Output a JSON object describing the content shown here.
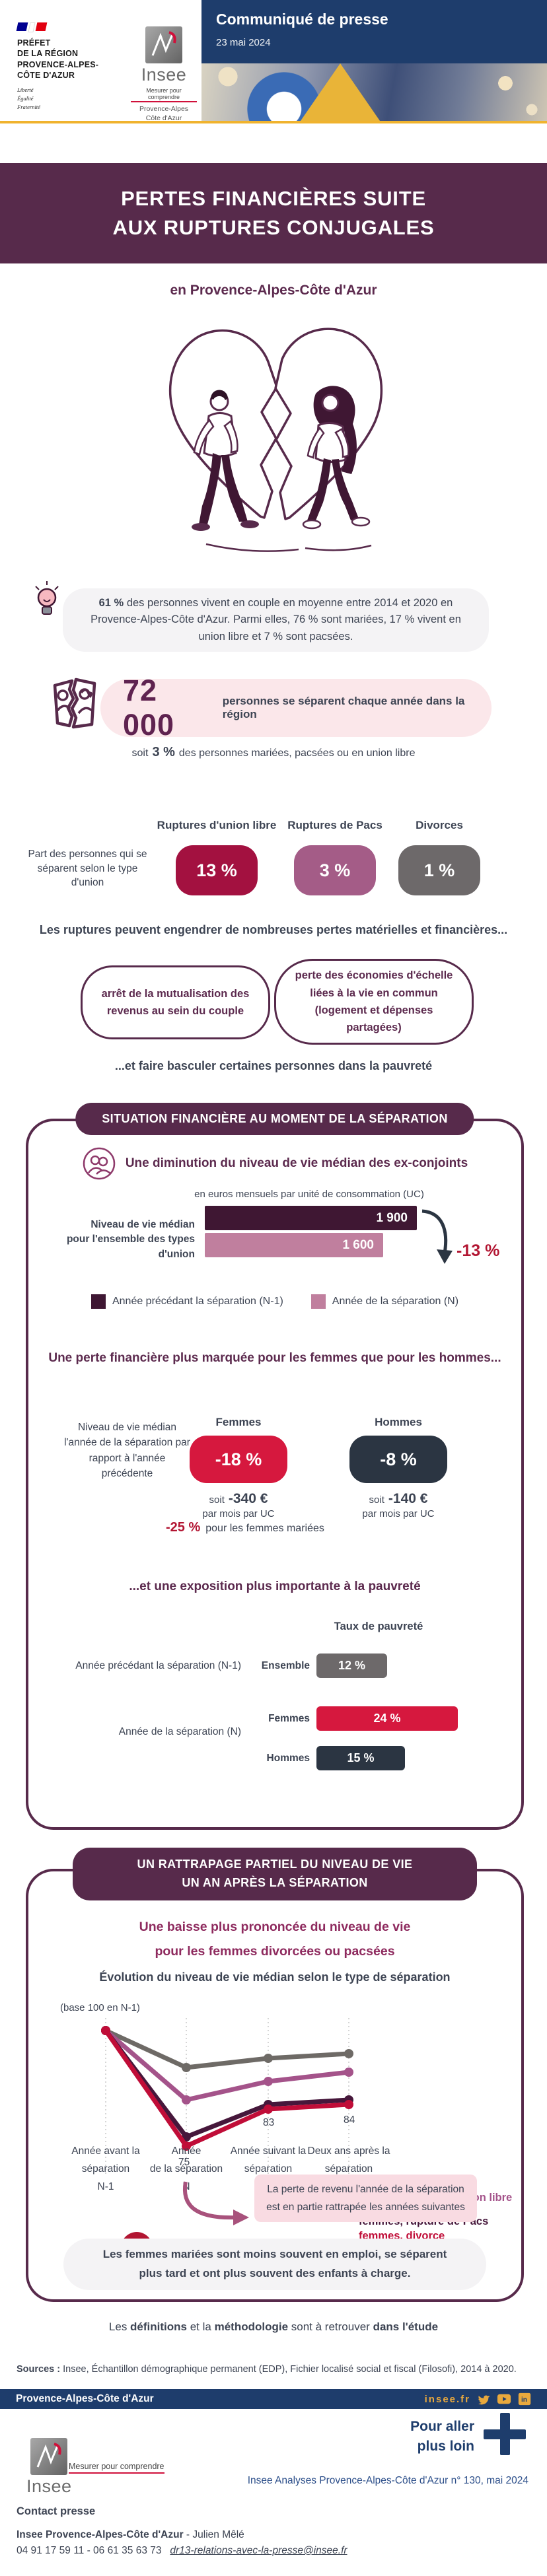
{
  "theme": {
    "purple_dark": "#572a4b",
    "purple_text": "#5c2a4e",
    "heading_magenta": "#8e2a5e",
    "crimson": "#a31140",
    "red_bright": "#d6183e",
    "red_text": "#b21532",
    "mauve": "#a45c87",
    "mauve_line": "#a4538a",
    "pacs_dark": "#46173b",
    "gray_badge": "#6d696a",
    "gray_line": "#6e6a66",
    "navy_badge": "#2b3542",
    "body_text": "#3d4453",
    "blue_band": "#1e3d6c",
    "blue_link": "#2d4f8a",
    "gold": "#e9a93d",
    "yellow_line": "#f0b32e",
    "pink_bg": "#fbe7ea",
    "pink_note": "#f9dbe2",
    "gray_bg": "#f4f3f5",
    "bar_dark": "#3f1733",
    "bar_pink": "#c07f9e"
  },
  "header": {
    "prefet": {
      "line1": "PRÉFET",
      "line2": "DE LA RÉGION",
      "line3": "PROVENCE-ALPES-",
      "line4": "CÔTE D'AZUR",
      "motto1": "Liberté",
      "motto2": "Égalité",
      "motto3": "Fraternité"
    },
    "insee": {
      "name": "Insee",
      "tagline": "Mesurer pour comprendre",
      "region1": "Provence-Alpes",
      "region2": "Côte d'Azur"
    },
    "banner": {
      "title": "Communiqué de presse",
      "date": "23 mai 2024"
    }
  },
  "title": {
    "line1": "PERTES FINANCIÈRES SUITE",
    "line2": "AUX RUPTURES CONJUGALES",
    "subtitle": "en Provence-Alpes-Côte d'Azur"
  },
  "intro": {
    "value": "61 %",
    "text": " des personnes vivent en couple en moyenne entre 2014 et 2020 en Provence-Alpes-Côte d'Azur. Parmi elles, 76 % sont mariées, 17 % vivent en union libre et 7 % sont pacsées."
  },
  "separations": {
    "number": "72 000",
    "label": "personnes se séparent chaque année dans la région",
    "note_prefix": "soit",
    "note_value": "3 %",
    "note_suffix": "des personnes mariées, pacsées ou en union libre"
  },
  "union_types": {
    "axis_label": "Part des personnes qui se séparent selon le type d'union",
    "columns": [
      {
        "label": "Ruptures d'union libre",
        "value": "13 %",
        "color": "#a31140"
      },
      {
        "label": "Ruptures de Pacs",
        "value": "3 %",
        "color": "#a45c87"
      },
      {
        "label": "Divorces",
        "value": "1 %",
        "color": "#6d696a"
      }
    ]
  },
  "losses": {
    "intro": "Les ruptures peuvent engendrer de nombreuses pertes matérielles et financières...",
    "box1": "arrêt de la mutualisation des revenus au sein du couple",
    "box2": "perte des économies d'échelle liées à la vie en commun (logement et dépenses partagées)",
    "outro": "...et faire basculer certaines personnes dans la pauvreté"
  },
  "section_situation": {
    "pill": "SITUATION FINANCIÈRE AU MOMENT DE LA SÉPARATION",
    "part1_title": "Une diminution du niveau de vie médian des ex-conjoints",
    "chart_unit": "en euros mensuels par unité de consommation (UC)",
    "axis_label_1": "Niveau de vie médian",
    "axis_label_2": "pour l'ensemble des types d'union",
    "bar_n1_value": "1 900",
    "bar_n_value": "1 600",
    "delta": "-13 %",
    "legend_n1": "Année précédant la séparation (N-1)",
    "legend_n": "Année de la séparation (N)",
    "part2_title": "Une perte financière plus marquée pour les femmes que pour les hommes...",
    "row_label": "Niveau de vie médian l'année de la séparation par rapport à l'année précédente",
    "femmes": {
      "header": "Femmes",
      "value": "-18 %",
      "soit": "soit",
      "amount": "-340 €",
      "per": "par mois par UC"
    },
    "hommes": {
      "header": "Hommes",
      "value": "-8 %",
      "soit": "soit",
      "amount": "-140 €",
      "per": "par mois par UC"
    },
    "married_value": "-25 %",
    "married_text": "pour les femmes mariées",
    "part3_title": "...et une exposition plus importante à la pauvreté",
    "poverty": {
      "title": "Taux de pauvreté",
      "group1_label": "Année précédant la séparation (N-1)",
      "group2_label": "Année de la séparation (N)",
      "rows": [
        {
          "label": "Ensemble",
          "value": "12 %",
          "color": "#6d696a"
        },
        {
          "label": "Femmes",
          "value": "24 %",
          "color": "#d6183e"
        },
        {
          "label": "Hommes",
          "value": "15 %",
          "color": "#2b3542"
        }
      ]
    }
  },
  "section_rattrapage": {
    "pill_line1": "UN RATTRAPAGE PARTIEL DU NIVEAU DE VIE",
    "pill_line2": "UN AN APRÈS LA SÉPARATION",
    "heading_line1": "Une baisse plus prononcée du niveau de vie",
    "heading_line2": "pour les femmes divorcées ou pacsées",
    "chart_title": "Évolution du niveau de vie médian selon le type de séparation",
    "base_label": "(base 100 en N-1)",
    "drop_badge": "25 %",
    "drop_arrow": "↘",
    "annotation_line1": "La perte de revenu l'année de la séparation",
    "annotation_line2": "est en partie rattrapée les années suivantes",
    "note_line1": "Les femmes mariées sont moins souvent en emploi, se séparent",
    "note_line2": "plus tard et ont plus souvent des enfants à charge."
  },
  "chart_data": [
    {
      "id": "niveau_vie_median",
      "type": "bar",
      "title": "Niveau de vie médian pour l'ensemble des types d'union",
      "unit": "en euros mensuels par unité de consommation (UC)",
      "categories": [
        "Année précédant la séparation (N-1)",
        "Année de la séparation (N)"
      ],
      "values": [
        1900,
        1600
      ],
      "delta_label": "-13 %",
      "colors": [
        "#3f1733",
        "#c07f9e"
      ]
    },
    {
      "id": "taux_pauvrete",
      "type": "bar",
      "title": "Taux de pauvreté",
      "ylabel": "%",
      "categories": [
        "Ensemble (N-1)",
        "Femmes (N)",
        "Hommes (N)"
      ],
      "values": [
        12,
        24,
        15
      ],
      "colors": [
        "#6d696a",
        "#d6183e",
        "#2b3542"
      ]
    },
    {
      "id": "evolution_niveau_vie",
      "type": "line",
      "title": "Évolution du niveau de vie médian selon le type de séparation",
      "note": "(base 100 en N-1)",
      "ylim": [
        70,
        102
      ],
      "grid": "vertical-dashed",
      "legend_position": "right",
      "x": [
        "N-1",
        "N",
        "N+1",
        "N+2"
      ],
      "x_labels_full": [
        [
          "Année avant la",
          "séparation",
          "N-1"
        ],
        [
          "Année",
          "de la séparation",
          "N"
        ],
        [
          "Année suivant la",
          "séparation",
          "N+1"
        ],
        [
          "Deux ans après la",
          "séparation",
          "N+2"
        ]
      ],
      "series": [
        {
          "name": "hommes, ensemble",
          "color": "#6e6a66",
          "values": [
            100,
            92,
            94,
            95
          ]
        },
        {
          "name": "femmes, rupture d'union libre",
          "color": "#a4538a",
          "values": [
            100,
            85,
            89,
            91
          ]
        },
        {
          "name": "femmes, rupture de Pacs",
          "color": "#46173b",
          "values": [
            100,
            77,
            84,
            85
          ]
        },
        {
          "name": "femmes, divorce",
          "color": "#c00d38",
          "values": [
            100,
            75,
            83,
            84
          ]
        }
      ],
      "point_labels": [
        {
          "text": "75"
        },
        {
          "text": "83"
        },
        {
          "text": "84"
        }
      ],
      "drop_annotation": "25 %"
    }
  ],
  "footer_notes": {
    "def_1": "Les ",
    "def_b1": "définitions",
    "def_2": " et la ",
    "def_b2": "méthodologie",
    "def_3": " sont à retrouver ",
    "def_b3": "dans l'étude",
    "sources_bold": "Sources :",
    "sources_text": " Insee, Échantillon démographique permanent (EDP), Fichier localisé social et fiscal (Filosofi), 2014 à 2020."
  },
  "footer": {
    "region": "Provence-Alpes-Côte d'Azur",
    "site": "insee.fr",
    "more_line1": "Pour aller",
    "more_line2": "plus loin",
    "insee_name": "Insee",
    "insee_tagline": "Mesurer pour comprendre",
    "reference": "Insee Analyses Provence-Alpes-Côte d'Azur n° 130, mai 2024",
    "contact_title": "Contact presse",
    "contact_org": "Insee  Provence-Alpes-Côte d'Azur",
    "contact_name": " - Julien Mêlé",
    "contact_phones": "04 91 17 59 11 - 06 61 35 63 73",
    "contact_email": "dr13-relations-avec-la-presse@insee.fr"
  }
}
